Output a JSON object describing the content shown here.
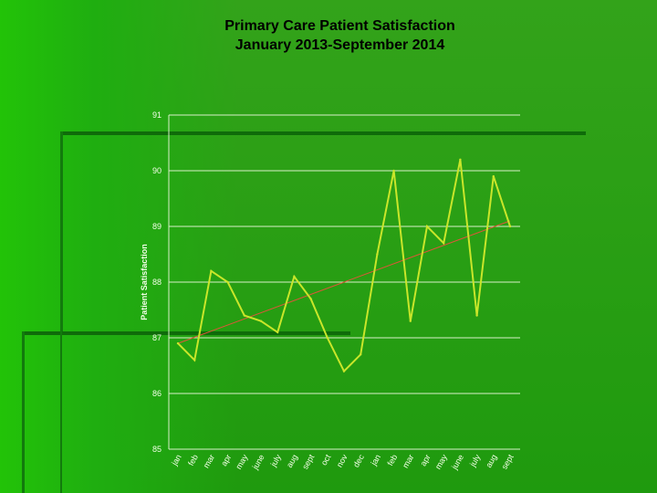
{
  "page": {
    "title_line1": "Primary Care Patient Satisfaction",
    "title_line2": "January 2013-September 2014"
  },
  "colors": {
    "background": "#1f9a0e",
    "series_line": "#c9e62a",
    "trend_line": "#e0553a",
    "gridline": "#d8f0c8",
    "axis_text": "#f4ffe8"
  },
  "chart_data": {
    "type": "line",
    "title": "Primary Care Patient Satisfaction January 2013-September 2014",
    "xlabel": "",
    "ylabel": "Patient Satisfaction",
    "ylim": [
      85,
      91
    ],
    "yticks": [
      85,
      86,
      87,
      88,
      89,
      90,
      91
    ],
    "grid": true,
    "categories": [
      "jan",
      "feb",
      "mar",
      "apr",
      "may",
      "june",
      "july",
      "aug",
      "sept",
      "oct",
      "nov",
      "dec",
      "jan",
      "feb",
      "mar",
      "apr",
      "may",
      "june",
      "july",
      "aug",
      "sept"
    ],
    "series": [
      {
        "values": [
          86.9,
          86.6,
          88.2,
          88.0,
          87.4,
          87.3,
          87.1,
          88.1,
          87.7,
          87.0,
          86.4,
          86.7,
          88.5,
          90.0,
          87.3,
          89.0,
          88.7,
          90.2,
          87.4,
          89.9,
          89.0
        ]
      }
    ],
    "trendline": {
      "start": 86.9,
      "end": 89.1
    }
  }
}
